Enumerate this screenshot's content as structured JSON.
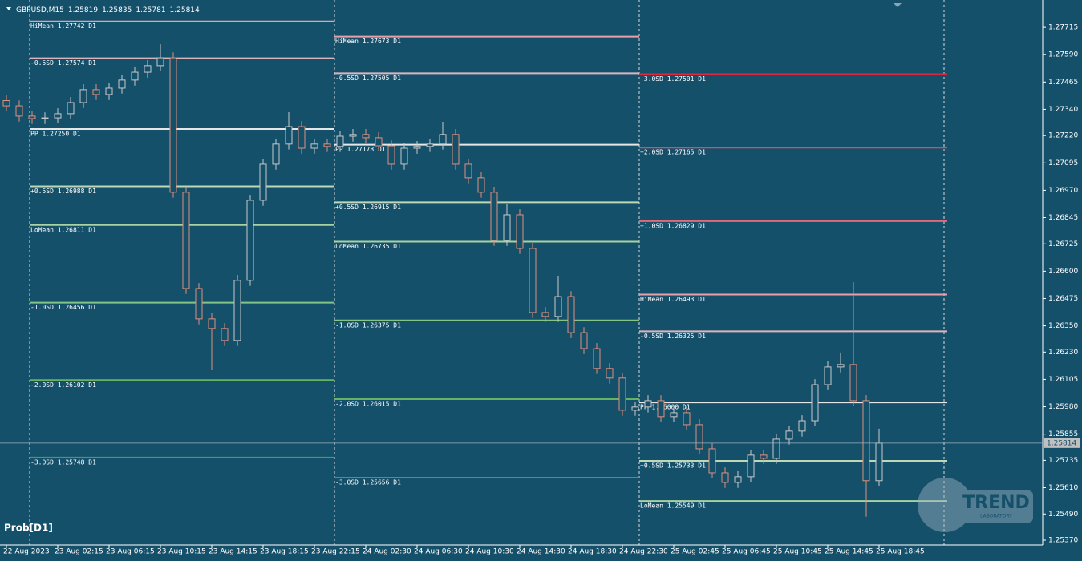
{
  "chart_data": {
    "type": "candlestick",
    "header": {
      "symbol": "GBPUSD,M15",
      "values": [
        1.25819,
        1.25835,
        1.25781,
        1.25814
      ]
    },
    "indicator": "Prob[D1]",
    "watermark": [
      "TREND",
      "LABORATORY"
    ],
    "up_color": "#c8c8c8",
    "down_color": "#e0907c",
    "categories": [
      "22 Aug 2023",
      null,
      null,
      null,
      "23 Aug 02:15",
      null,
      null,
      null,
      "23 Aug 06:15",
      null,
      null,
      null,
      "23 Aug 10:15",
      null,
      null,
      null,
      "23 Aug 14:15",
      null,
      null,
      null,
      "23 Aug 18:15",
      null,
      null,
      null,
      "23 Aug 22:15",
      null,
      null,
      null,
      "24 Aug 02:30",
      null,
      null,
      null,
      "24 Aug 06:30",
      null,
      null,
      null,
      "24 Aug 10:30",
      null,
      null,
      null,
      "24 Aug 14:30",
      null,
      null,
      null,
      "24 Aug 18:30",
      null,
      null,
      null,
      "24 Aug 22:30",
      null,
      null,
      null,
      "25 Aug 02:45",
      null,
      null,
      null,
      "25 Aug 06:45",
      null,
      null,
      null,
      "25 Aug 10:45",
      null,
      null,
      null,
      "25 Aug 14:45",
      null,
      null,
      null,
      "25 Aug 18:45"
    ],
    "open": [
      1.2738,
      1.27356,
      1.27309,
      1.27298,
      1.27301,
      1.2732,
      1.27371,
      1.2743,
      1.27408,
      1.27437,
      1.27474,
      1.2751,
      1.2754,
      1.27576,
      1.26961,
      1.26521,
      1.26382,
      1.26338,
      1.26283,
      1.26558,
      1.26924,
      1.27089,
      1.27181,
      1.27261,
      1.27162,
      1.27181,
      1.2717,
      1.27217,
      1.27225,
      1.2721,
      1.27173,
      1.27089,
      1.27162,
      1.2717,
      1.27181,
      1.27225,
      1.27089,
      1.27027,
      1.26961,
      1.26741,
      1.26858,
      1.26704,
      1.26411,
      1.26393,
      1.26484,
      1.26319,
      1.26246,
      1.26155,
      1.26111,
      1.25964,
      1.25979,
      1.26008,
      1.25935,
      1.25953,
      1.25898,
      1.25788,
      1.25678,
      1.25634,
      1.2566,
      1.25759,
      1.25744,
      1.25832,
      1.25869,
      1.25916,
      1.26081,
      1.26162,
      1.26173,
      1.26008,
      1.25642
    ],
    "high": [
      1.27405,
      1.27381,
      1.27334,
      1.27326,
      1.27345,
      1.27396,
      1.27455,
      1.27455,
      1.27462,
      1.27499,
      1.27535,
      1.27565,
      1.27638,
      1.27601,
      1.26986,
      1.26546,
      1.26407,
      1.26363,
      1.26583,
      1.26949,
      1.27114,
      1.27206,
      1.27327,
      1.27286,
      1.27206,
      1.27206,
      1.27242,
      1.2725,
      1.2725,
      1.27235,
      1.27198,
      1.27187,
      1.27195,
      1.27206,
      1.27283,
      1.2725,
      1.27114,
      1.27052,
      1.26986,
      1.26906,
      1.26883,
      1.26729,
      1.26436,
      1.26576,
      1.26509,
      1.26344,
      1.26271,
      1.2618,
      1.26136,
      1.26004,
      1.26033,
      1.26033,
      1.25978,
      1.25978,
      1.25923,
      1.25813,
      1.25703,
      1.25685,
      1.25784,
      1.25784,
      1.25857,
      1.25894,
      1.25941,
      1.26106,
      1.26187,
      1.26228,
      1.2655,
      1.26033,
      1.2588
    ],
    "low": [
      1.27331,
      1.27284,
      1.27273,
      1.27273,
      1.27276,
      1.27295,
      1.27346,
      1.27383,
      1.27383,
      1.27412,
      1.27449,
      1.27485,
      1.27515,
      1.26936,
      1.26496,
      1.26357,
      1.26147,
      1.26258,
      1.26258,
      1.26533,
      1.26899,
      1.27064,
      1.27156,
      1.27137,
      1.27137,
      1.27145,
      1.27145,
      1.27192,
      1.27185,
      1.27148,
      1.27064,
      1.27064,
      1.27137,
      1.27145,
      1.27156,
      1.27064,
      1.27002,
      1.26936,
      1.26716,
      1.26716,
      1.26679,
      1.26386,
      1.26368,
      1.26368,
      1.26294,
      1.26221,
      1.2613,
      1.26086,
      1.25939,
      1.25939,
      1.25954,
      1.2591,
      1.2591,
      1.25873,
      1.25763,
      1.25653,
      1.25609,
      1.25609,
      1.25635,
      1.25719,
      1.25719,
      1.25807,
      1.25844,
      1.25891,
      1.26056,
      1.26137,
      1.25983,
      1.25477,
      1.25617
    ],
    "close": [
      1.27356,
      1.27309,
      1.27298,
      1.27301,
      1.2732,
      1.27371,
      1.2743,
      1.27408,
      1.27437,
      1.27474,
      1.2751,
      1.2754,
      1.27576,
      1.26961,
      1.26521,
      1.26382,
      1.26338,
      1.26283,
      1.26558,
      1.26924,
      1.27089,
      1.27181,
      1.27261,
      1.27162,
      1.27181,
      1.2717,
      1.27217,
      1.27225,
      1.2721,
      1.27173,
      1.27089,
      1.27162,
      1.2717,
      1.27181,
      1.27225,
      1.27089,
      1.27027,
      1.26961,
      1.26741,
      1.26858,
      1.26704,
      1.26411,
      1.26393,
      1.26484,
      1.26319,
      1.26246,
      1.26155,
      1.26111,
      1.25964,
      1.25979,
      1.26008,
      1.25935,
      1.25953,
      1.25898,
      1.25788,
      1.25678,
      1.25634,
      1.2566,
      1.25759,
      1.25744,
      1.25832,
      1.25869,
      1.25916,
      1.26081,
      1.26162,
      1.26173,
      1.26008,
      1.25642,
      1.25814
    ],
    "last_price": 1.25814,
    "ylim": [
      1.25348,
      1.2784
    ],
    "yticks": [
      1.27715,
      {
        "value": 1.2759,
        "label": "1.27590"
      },
      1.27465,
      {
        "value": 1.2734,
        "label": "1.27340"
      },
      {
        "value": 1.2722,
        "label": "1.27220"
      },
      1.27095,
      {
        "value": 1.2697,
        "label": "1.26970"
      },
      1.26845,
      1.26725,
      {
        "value": 1.266,
        "label": "1.26600"
      },
      1.26475,
      {
        "value": 1.2635,
        "label": "1.26350"
      },
      {
        "value": 1.2623,
        "label": "1.26230"
      },
      1.26105,
      {
        "value": 1.2598,
        "label": "1.25980"
      },
      1.25855,
      1.25735,
      {
        "value": 1.2561,
        "label": "1.25610"
      },
      {
        "value": 1.2549,
        "label": "1.25490"
      },
      {
        "value": 1.2537,
        "label": "1.25370"
      }
    ],
    "levels": [
      [
        {
          "value": 1.27742,
          "label": "HiMean 1.27742 D1",
          "color": "#e8a0aa"
        },
        {
          "value": 1.27574,
          "label": "-0.5SD 1.27574 D1",
          "color": "#dcb4bc"
        },
        {
          "value": 1.2725,
          "label": "PP 1.27250 D1",
          "color": "#e6e6e6"
        },
        {
          "value": 1.26988,
          "label": "+0.5SD 1.26988 D1",
          "color": "#bcd8b4"
        },
        {
          "value": 1.26811,
          "label": "LoMean 1.26811 D1",
          "color": "#a8d2a0"
        },
        {
          "value": 1.26456,
          "label": "-1.0SD 1.26456 D1",
          "color": "#84c484"
        },
        {
          "value": 1.26102,
          "label": "-2.0SD 1.26102 D1",
          "color": "#64b464"
        },
        {
          "value": 1.25748,
          "label": "-3.0SD 1.25748 D1",
          "color": "#44a444"
        }
      ],
      [
        {
          "value": 1.27673,
          "label": "HiMean 1.27673 D1",
          "color": "#e8a0aa"
        },
        {
          "value": 1.27505,
          "label": "-0.5SD 1.27505 D1",
          "color": "#dcb4bc"
        },
        {
          "value": 1.27178,
          "label": "PP 1.27178 D1",
          "color": "#e6e6e6"
        },
        {
          "value": 1.26915,
          "label": "+0.5SD 1.26915 D1",
          "color": "#bcd8b4"
        },
        {
          "value": 1.26735,
          "label": "LoMean 1.26735 D1",
          "color": "#a8d2a0"
        },
        {
          "value": 1.26375,
          "label": "-1.0SD 1.26375 D1",
          "color": "#84c484"
        },
        {
          "value": 1.26015,
          "label": "-2.0SD 1.26015 D1",
          "color": "#64b464"
        },
        {
          "value": 1.25656,
          "label": "-3.0SD 1.25656 D1",
          "color": "#44a444"
        }
      ],
      [
        {
          "value": 1.27501,
          "label": "+3.0SD 1.27501 D1",
          "color": "#e0283c"
        },
        {
          "value": 1.27165,
          "label": "+2.0SD 1.27165 D1",
          "color": "#e0485c"
        },
        {
          "value": 1.26829,
          "label": "+1.0SD 1.26829 D1",
          "color": "#e06a7c"
        },
        {
          "value": 1.26493,
          "label": "HiMean 1.26493 D1",
          "color": "#e8a0aa"
        },
        {
          "value": 1.26325,
          "label": "-0.5SD 1.26325 D1",
          "color": "#dcb4bc"
        },
        {
          "value": 1.26,
          "label": "PP 1.26000 D1",
          "color": "#e6e6e6"
        },
        {
          "value": 1.25733,
          "label": "+0.5SD 1.25733 D1",
          "color": "#bcd8b4"
        },
        {
          "value": 1.25549,
          "label": "LoMean 1.25549 D1",
          "color": "#a8d2a0"
        }
      ]
    ]
  }
}
